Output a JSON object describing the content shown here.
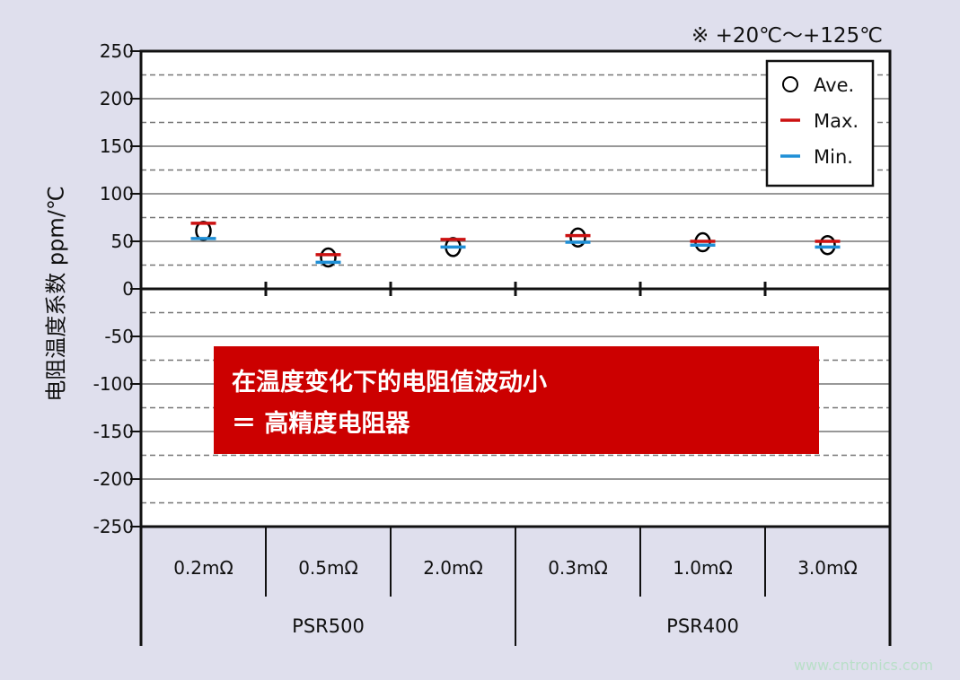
{
  "chart_data": {
    "type": "scatter",
    "note": "※ +20℃～+125℃",
    "ylabel": "电阻温度系数 ppm/℃",
    "ylim": [
      -250,
      250
    ],
    "yticks": [
      250,
      200,
      150,
      100,
      50,
      0,
      -50,
      -100,
      -150,
      -200,
      -250
    ],
    "grid": true,
    "categories": [
      "0.2mΩ",
      "0.5mΩ",
      "2.0mΩ",
      "0.3mΩ",
      "1.0mΩ",
      "3.0mΩ"
    ],
    "groups": [
      {
        "label": "PSR500",
        "span": 3
      },
      {
        "label": "PSR400",
        "span": 3
      }
    ],
    "series": [
      {
        "name": "Ave.",
        "marker": "circle",
        "color": "#000000",
        "values": [
          61,
          33,
          44,
          54,
          49,
          46
        ]
      },
      {
        "name": "Max.",
        "marker": "bar",
        "color": "#cc1111",
        "values": [
          69,
          36,
          52,
          56,
          50,
          50
        ]
      },
      {
        "name": "Min.",
        "marker": "bar",
        "color": "#1f8fd6",
        "values": [
          53,
          28,
          44,
          49,
          46,
          44
        ]
      }
    ],
    "legend": "top-right",
    "annotation": [
      "在温度变化下的电阻值波动小",
      "＝ 高精度电阻器"
    ]
  },
  "watermark": "www.cntronics.com"
}
